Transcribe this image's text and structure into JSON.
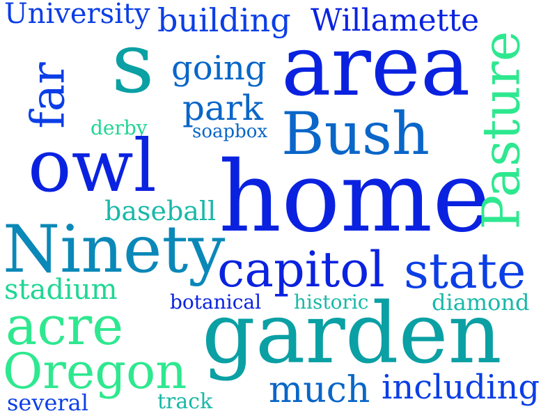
{
  "palette": {
    "blue_deep": "#0a22e0",
    "blue": "#0b3ee6",
    "blue_mid": "#0a66c8",
    "teal": "#0aa0a4",
    "teal_light": "#19b8a8",
    "green": "#1fd694",
    "green_light": "#2ee88f",
    "background": "#ffffff"
  },
  "words": [
    {
      "text": "University",
      "color": "#0b3ee6",
      "orientation": "horizontal"
    },
    {
      "text": "building",
      "color": "#0b3ee6",
      "orientation": "horizontal"
    },
    {
      "text": "Willamette",
      "color": "#0a22e0",
      "orientation": "horizontal"
    },
    {
      "text": "s",
      "color": "#0aa0a4",
      "orientation": "horizontal"
    },
    {
      "text": "going",
      "color": "#0a66c8",
      "orientation": "horizontal"
    },
    {
      "text": "area",
      "color": "#0a22e0",
      "orientation": "horizontal"
    },
    {
      "text": "far",
      "color": "#0b3ee6",
      "orientation": "vertical"
    },
    {
      "text": "park",
      "color": "#0a66c8",
      "orientation": "horizontal"
    },
    {
      "text": "derby",
      "color": "#1fd694",
      "orientation": "horizontal"
    },
    {
      "text": "soapbox",
      "color": "#0a66c8",
      "orientation": "horizontal"
    },
    {
      "text": "Bush",
      "color": "#0a66c8",
      "orientation": "horizontal"
    },
    {
      "text": "owl",
      "color": "#0a22e0",
      "orientation": "horizontal"
    },
    {
      "text": "home",
      "color": "#0a22e0",
      "orientation": "horizontal"
    },
    {
      "text": "Pasture",
      "color": "#2ee88f",
      "orientation": "vertical"
    },
    {
      "text": "baseball",
      "color": "#19b8a8",
      "orientation": "horizontal"
    },
    {
      "text": "Ninety",
      "color": "#0a88b8",
      "orientation": "horizontal"
    },
    {
      "text": "capitol",
      "color": "#0a22e0",
      "orientation": "horizontal"
    },
    {
      "text": "state",
      "color": "#0b3ee6",
      "orientation": "horizontal"
    },
    {
      "text": "stadium",
      "color": "#1fd694",
      "orientation": "horizontal"
    },
    {
      "text": "botanical",
      "color": "#0a22e0",
      "orientation": "horizontal"
    },
    {
      "text": "historic",
      "color": "#19b8a8",
      "orientation": "horizontal"
    },
    {
      "text": "diamond",
      "color": "#19b8a8",
      "orientation": "horizontal"
    },
    {
      "text": "acre",
      "color": "#2ee88f",
      "orientation": "horizontal"
    },
    {
      "text": "garden",
      "color": "#0aa0a4",
      "orientation": "horizontal"
    },
    {
      "text": "Oregon",
      "color": "#2ee88f",
      "orientation": "horizontal"
    },
    {
      "text": "much",
      "color": "#0a66c8",
      "orientation": "horizontal"
    },
    {
      "text": "including",
      "color": "#0b3ee6",
      "orientation": "horizontal"
    },
    {
      "text": "several",
      "color": "#0b3ee6",
      "orientation": "horizontal"
    },
    {
      "text": "track",
      "color": "#19b8a8",
      "orientation": "horizontal"
    }
  ]
}
